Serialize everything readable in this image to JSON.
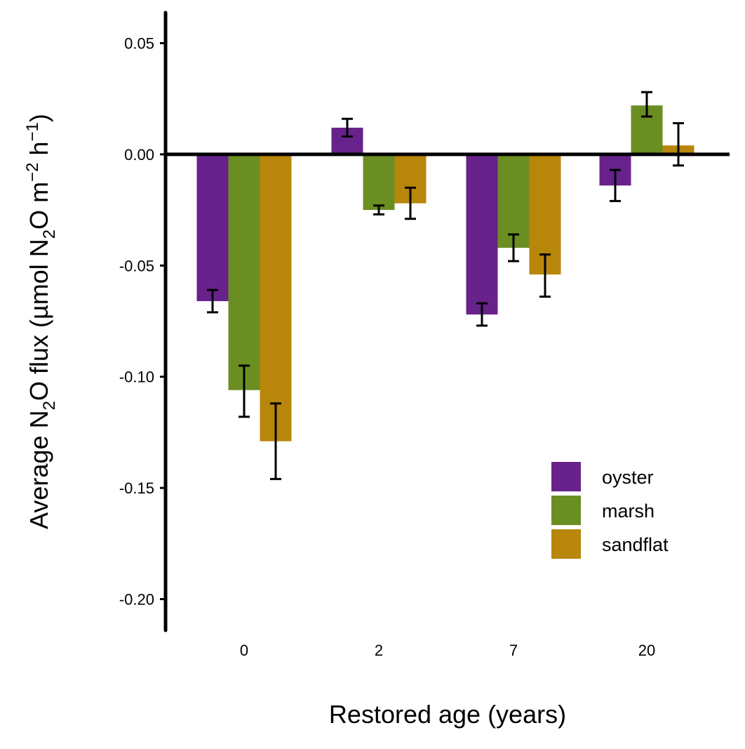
{
  "chart_data": {
    "type": "bar",
    "xlabel": "Restored age (years)",
    "ylabel": {
      "parts": [
        {
          "text": "Average N",
          "shift": "none"
        },
        {
          "text": "2",
          "shift": "sub"
        },
        {
          "text": "O flux (µmol N",
          "shift": "none"
        },
        {
          "text": "2",
          "shift": "sub"
        },
        {
          "text": "O m",
          "shift": "none"
        },
        {
          "text": "−2",
          "shift": "sup"
        },
        {
          "text": " h",
          "shift": "none"
        },
        {
          "text": "−1",
          "shift": "sup"
        },
        {
          "text": ")",
          "shift": "none"
        }
      ]
    },
    "categories": [
      "0",
      "2",
      "7",
      "20"
    ],
    "ylim": [
      -0.215,
      0.063
    ],
    "yticks": [
      0.05,
      0.0,
      -0.05,
      -0.1,
      -0.15,
      -0.2
    ],
    "ytick_labels": [
      "0.05",
      "0.00",
      "-0.05",
      "-0.10",
      "-0.15",
      "-0.20"
    ],
    "series": [
      {
        "name": "oyster",
        "color": "#68228b",
        "values": [
          -0.066,
          0.012,
          -0.072,
          -0.014
        ],
        "err_low": [
          -0.071,
          0.008,
          -0.077,
          -0.021
        ],
        "err_high": [
          -0.061,
          0.016,
          -0.067,
          -0.007
        ]
      },
      {
        "name": "marsh",
        "color": "#6b8e23",
        "values": [
          -0.106,
          -0.025,
          -0.042,
          0.022
        ],
        "err_low": [
          -0.118,
          -0.027,
          -0.048,
          0.017
        ],
        "err_high": [
          -0.095,
          -0.023,
          -0.036,
          0.028
        ]
      },
      {
        "name": "sandflat",
        "color": "#b8860b",
        "values": [
          -0.129,
          -0.022,
          -0.054,
          0.004
        ],
        "err_low": [
          -0.146,
          -0.029,
          -0.064,
          -0.005
        ],
        "err_high": [
          -0.112,
          -0.015,
          -0.045,
          0.014
        ]
      }
    ],
    "legend_position": "bottom-right",
    "grid": false
  }
}
